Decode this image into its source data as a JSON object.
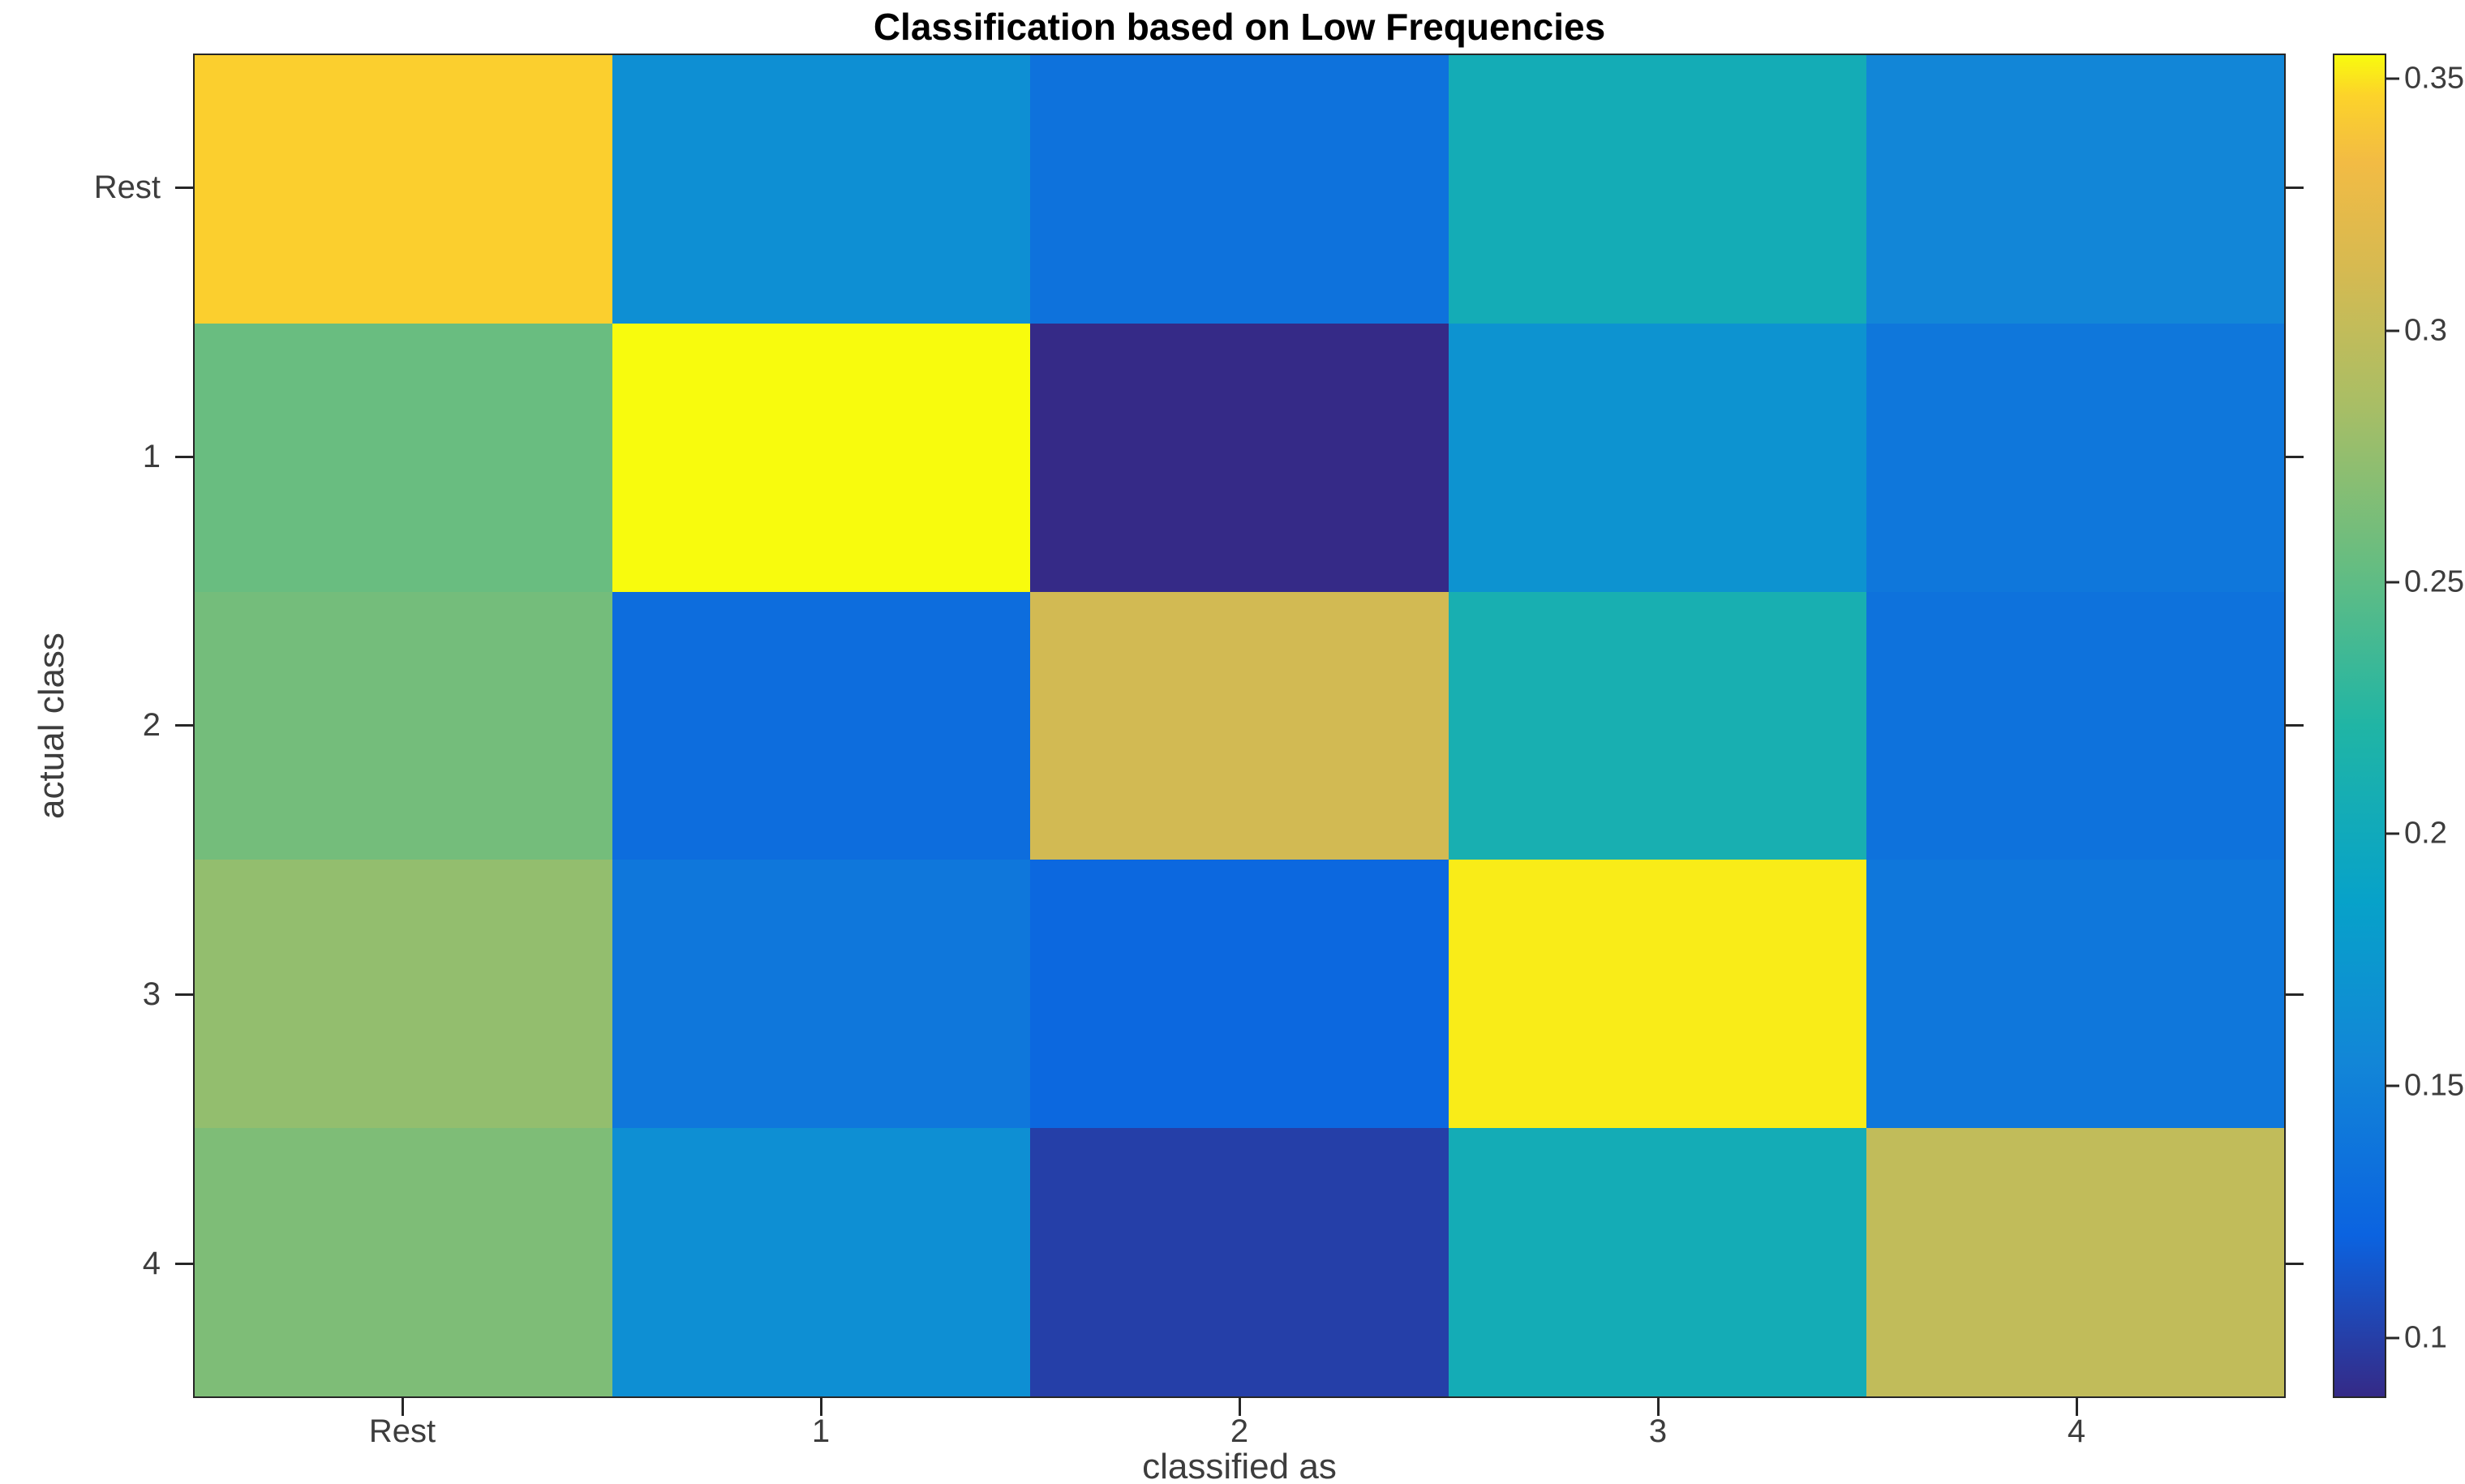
{
  "figure": {
    "background_color": "#ffffff",
    "axis_color": "#262626",
    "label_color": "#3d3d3d",
    "title_color": "#000000"
  },
  "chart_data": {
    "type": "heatmap",
    "title": "Classification based on Low Frequencies",
    "xlabel": "classified as",
    "ylabel": "actual class",
    "x_categories": [
      "Rest",
      "1",
      "2",
      "3",
      "4"
    ],
    "y_categories": [
      "Rest",
      "1",
      "2",
      "3",
      "4"
    ],
    "values": [
      [
        0.345,
        0.165,
        0.135,
        0.205,
        0.155
      ],
      [
        0.255,
        0.355,
        0.088,
        0.17,
        0.14
      ],
      [
        0.26,
        0.13,
        0.31,
        0.21,
        0.135
      ],
      [
        0.275,
        0.14,
        0.125,
        0.352,
        0.14
      ],
      [
        0.265,
        0.165,
        0.1,
        0.205,
        0.3
      ]
    ],
    "clim": [
      0.088,
      0.355
    ],
    "grid": false,
    "legend_position": "right-colorbar",
    "colorbar_ticks": [
      0.1,
      0.15,
      0.2,
      0.25,
      0.3,
      0.35
    ],
    "colorbar_tick_labels": [
      "0.1",
      "0.15",
      "0.2",
      "0.25",
      "0.3",
      "0.35"
    ],
    "colormap_name": "parula",
    "colormap": [
      {
        "t": 0.0,
        "color": "#352a87"
      },
      {
        "t": 0.12,
        "color": "#0b63e0"
      },
      {
        "t": 0.25,
        "color": "#1286d7"
      },
      {
        "t": 0.37,
        "color": "#07a2c9"
      },
      {
        "t": 0.5,
        "color": "#20b5a5"
      },
      {
        "t": 0.62,
        "color": "#66bd81"
      },
      {
        "t": 0.74,
        "color": "#a9be65"
      },
      {
        "t": 0.84,
        "color": "#d6ba51"
      },
      {
        "t": 0.92,
        "color": "#f2bb44"
      },
      {
        "t": 0.97,
        "color": "#fcd32a"
      },
      {
        "t": 1.0,
        "color": "#f8fb0d"
      }
    ]
  }
}
